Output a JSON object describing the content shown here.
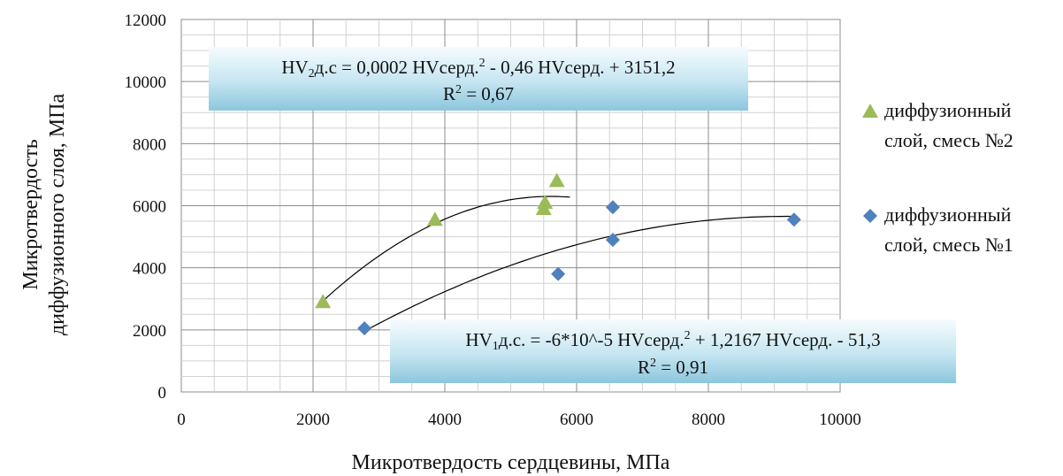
{
  "chart_data": {
    "type": "scatter",
    "xlabel": "Микротвердость сердцевины, МПа",
    "ylabel": [
      "Микротвердость",
      "диффузионного слоя, МПа"
    ],
    "xlim": [
      0,
      10000
    ],
    "ylim": [
      0,
      12000
    ],
    "x_ticks": [
      "0",
      "2000",
      "4000",
      "6000",
      "8000",
      "10000"
    ],
    "y_ticks": [
      "0",
      "2000",
      "4000",
      "6000",
      "8000",
      "10000",
      "12000"
    ],
    "grid": true,
    "legend_position": "right",
    "series": [
      {
        "name": [
          "диффузионный",
          "слой, смесь №2"
        ],
        "marker": "triangle",
        "color": "#9bbb59",
        "points": [
          [
            2150,
            2900
          ],
          [
            3850,
            5550
          ],
          [
            5500,
            5900
          ],
          [
            5520,
            6100
          ],
          [
            5700,
            6800
          ]
        ],
        "trendline": {
          "type": "polynomial",
          "order": 2,
          "x_range": [
            2150,
            5900
          ]
        }
      },
      {
        "name": [
          "диффузионный",
          "слой, смесь №1"
        ],
        "marker": "diamond",
        "color": "#4f81bd",
        "points": [
          [
            2780,
            2050
          ],
          [
            5720,
            3800
          ],
          [
            6550,
            4900
          ],
          [
            6550,
            5950
          ],
          [
            9300,
            5550
          ]
        ],
        "trendline": {
          "type": "polynomial",
          "order": 2,
          "x_range": [
            2780,
            9300
          ]
        }
      }
    ],
    "annotations": [
      {
        "parts": [
          {
            "t": "HV"
          },
          {
            "t": "2",
            "sub": true
          },
          {
            "t": "д.с = 0,0002 HVсерд."
          },
          {
            "t": "2",
            "sup": true
          },
          {
            "t": " - 0,46 HVсерд. + 3151,2"
          }
        ],
        "r2_label": "R",
        "r2_sup": "2",
        "r2_value": " = 0,67"
      },
      {
        "parts": [
          {
            "t": "HV"
          },
          {
            "t": "1",
            "sub": true
          },
          {
            "t": "д.с. = -6*10^-5 HVсерд."
          },
          {
            "t": "2",
            "sup": true
          },
          {
            "t": " + 1,2167 HVсерд. - 51,3"
          }
        ],
        "r2_label": "R",
        "r2_sup": "2",
        "r2_value": " = 0,91"
      }
    ]
  }
}
